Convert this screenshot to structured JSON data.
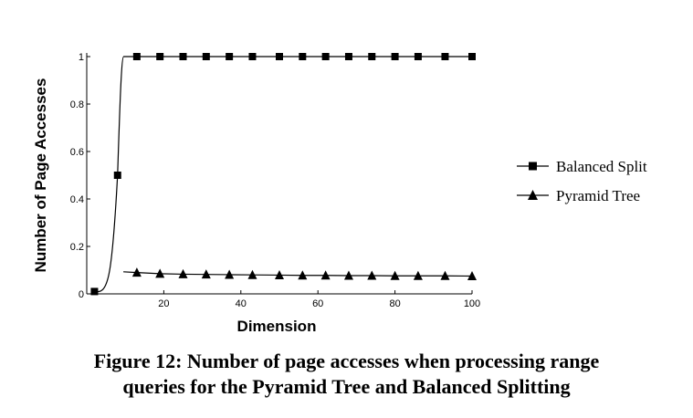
{
  "chart_data": {
    "type": "line",
    "title": "",
    "xlabel": "Dimension",
    "ylabel": "Number of Page Accesses",
    "xlim": [
      0,
      100
    ],
    "ylim": [
      0,
      1
    ],
    "x_ticks": [
      "20",
      "40",
      "60",
      "80",
      "100"
    ],
    "y_ticks": [
      "0",
      "0.2",
      "0.4",
      "0.6",
      "0.8",
      "1"
    ],
    "x_ticks_values": [
      20,
      40,
      60,
      80,
      100
    ],
    "y_ticks_values": [
      0,
      0.2,
      0.4,
      0.6,
      0.8,
      1
    ],
    "grid": false,
    "legend_position": "right",
    "series": [
      {
        "name": "Balanced Split",
        "marker": "square",
        "color": "#000000",
        "x": [
          2,
          8,
          13,
          19,
          25,
          31,
          37,
          43,
          50,
          56,
          62,
          68,
          74,
          80,
          86,
          93,
          100
        ],
        "y": [
          0.01,
          0.5,
          1,
          1,
          1,
          1,
          1,
          1,
          1,
          1,
          1,
          1,
          1,
          1,
          1,
          1,
          1
        ]
      },
      {
        "name": "Pyramid Tree",
        "marker": "triangle",
        "color": "#000000",
        "x": [
          13,
          19,
          25,
          31,
          37,
          43,
          50,
          56,
          62,
          68,
          74,
          80,
          86,
          93,
          100
        ],
        "y": [
          0.09,
          0.085,
          0.083,
          0.082,
          0.081,
          0.08,
          0.079,
          0.078,
          0.078,
          0.077,
          0.077,
          0.076,
          0.076,
          0.076,
          0.075
        ]
      }
    ]
  },
  "caption": {
    "line1": "Figure 12: Number of page accesses when processing range",
    "line2": "queries for the Pyramid Tree and Balanced Splitting"
  }
}
